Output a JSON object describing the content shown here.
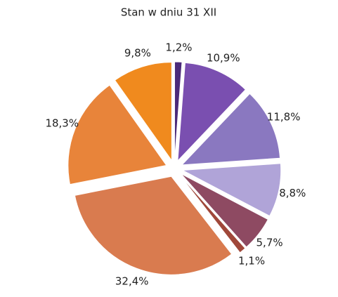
{
  "chart_data": {
    "type": "pie",
    "subtitle": "Stan w dniu 31 XII",
    "values": [
      1.2,
      10.9,
      11.8,
      8.8,
      5.7,
      1.1,
      32.4,
      18.3,
      9.8
    ],
    "value_labels": [
      "1,2%",
      "10,9%",
      "11,8%",
      "8,8%",
      "5,7%",
      "1,1%",
      "32,4%",
      "18,3%",
      "9,8%"
    ],
    "colors": [
      "#4b2a7a",
      "#7a4fb0",
      "#8a78c0",
      "#b0a4d8",
      "#8e4a62",
      "#a0483a",
      "#d97b4f",
      "#e8843a",
      "#f08a1e"
    ]
  }
}
